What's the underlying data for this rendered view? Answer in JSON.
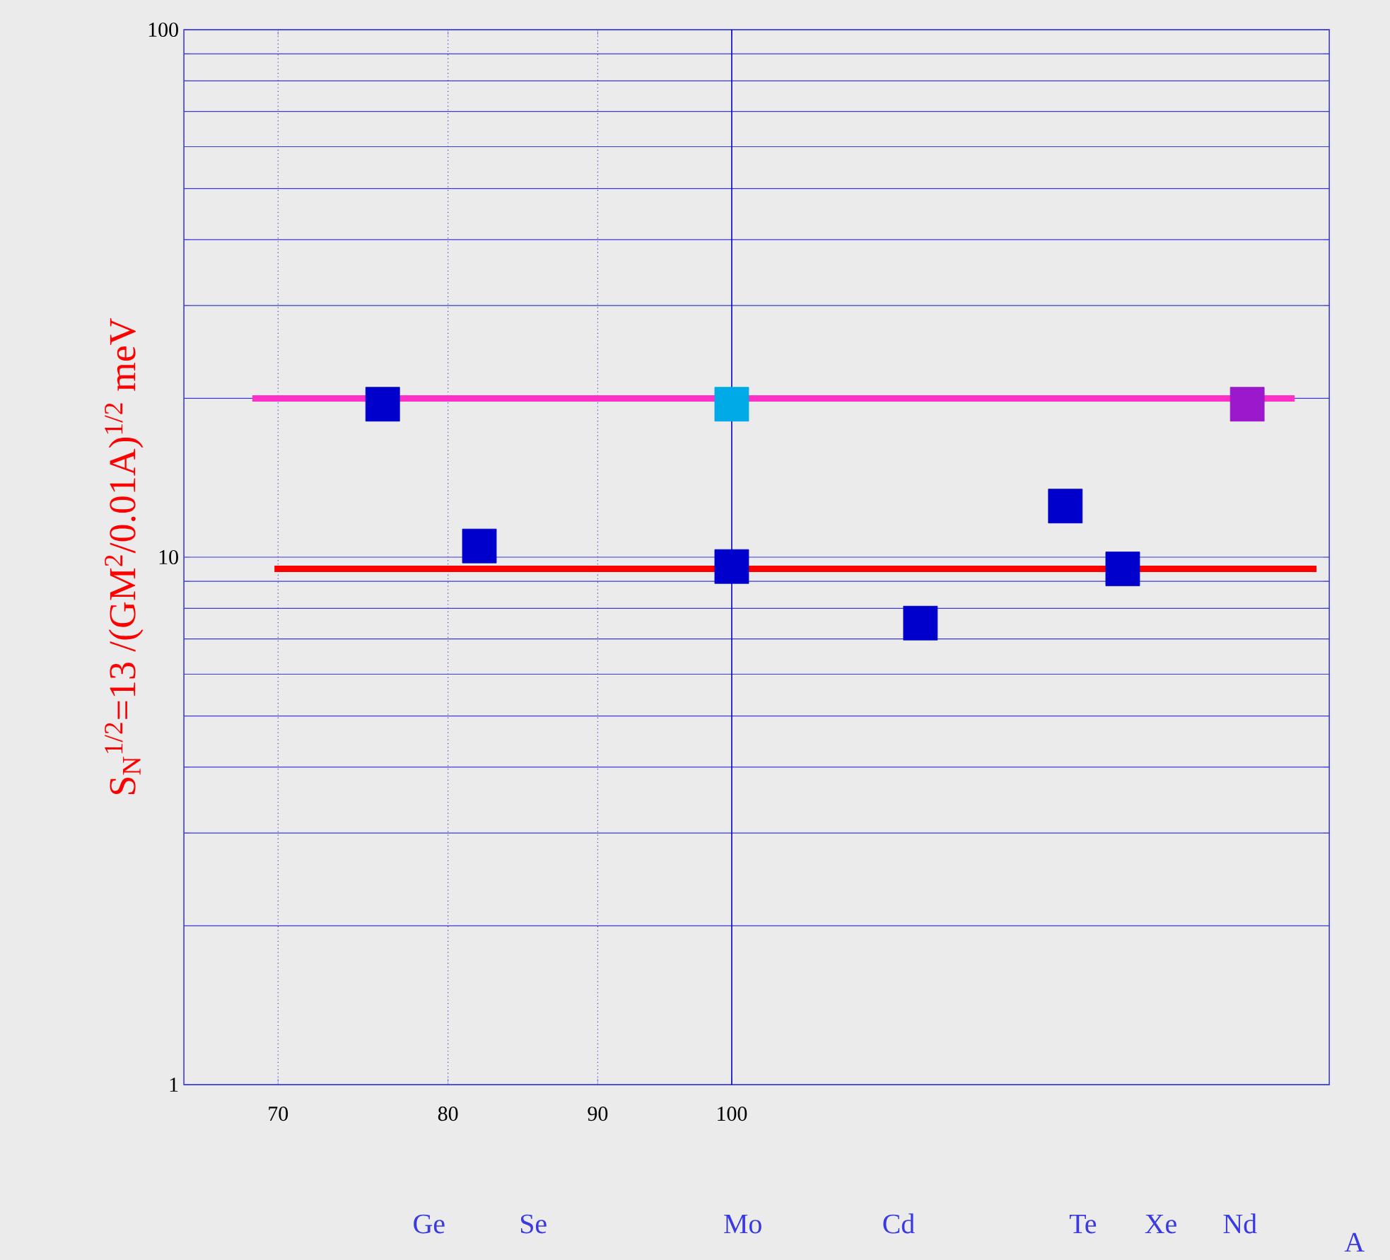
{
  "chart_data": {
    "type": "scatter",
    "ylabel": "S$_{N}$$^{1/2}$=13  /(GM$^{2}$/0.01A)$^{1/2}$  meV",
    "xlabel": "A",
    "log": "xy",
    "xlim": [
      65,
      160
    ],
    "xticks": [
      70,
      80,
      90,
      100
    ],
    "annotations": [
      "Ge",
      "Se",
      "Mo",
      "Cd",
      "Te",
      "Xe",
      "Nd"
    ],
    "ylim": [
      1,
      100
    ],
    "yticks": [
      1,
      {
        "value": 2,
        "label": null
      },
      {
        "value": 3,
        "label": null
      },
      {
        "value": 4,
        "label": null
      },
      {
        "value": 5,
        "label": null
      },
      {
        "value": 6,
        "label": null
      },
      {
        "value": 7,
        "label": null
      },
      {
        "value": 8,
        "label": null
      },
      {
        "value": 9,
        "label": null
      },
      10,
      {
        "value": 20,
        "label": null
      },
      {
        "value": 30,
        "label": null
      },
      {
        "value": 40,
        "label": null
      },
      {
        "value": 50,
        "label": null
      },
      {
        "value": 60,
        "label": null
      },
      {
        "value": 70,
        "label": null
      },
      {
        "value": 80,
        "label": null
      },
      {
        "value": 90,
        "label": null
      },
      100
    ],
    "grid": true,
    "marker": "square",
    "ref_lines": [
      {
        "axis": "x",
        "value": 100,
        "color": "#0000cc",
        "line_style": "solid"
      }
    ],
    "series": [
      {
        "x": [
          76,
          82,
          100,
          116,
          130,
          136
        ],
        "values": [
          19.5,
          10.5,
          9.6,
          7.5,
          12.5,
          9.5
        ],
        "color": "#0000cc"
      },
      {
        "x": [
          100
        ],
        "values": [
          19.5
        ],
        "color": "#00aae6"
      },
      {
        "x": [
          150
        ],
        "values": [
          19.5
        ],
        "color": "#9b18cc"
      },
      {
        "type": "line",
        "x": [
          68.6,
          155.7
        ],
        "values": [
          20,
          20
        ],
        "color": "#ff30c8",
        "marker": "none"
      },
      {
        "type": "line",
        "x": [
          69.8,
          158.4
        ],
        "values": [
          9.5,
          9.5
        ],
        "color": "#ff0000",
        "marker": "none"
      }
    ]
  }
}
